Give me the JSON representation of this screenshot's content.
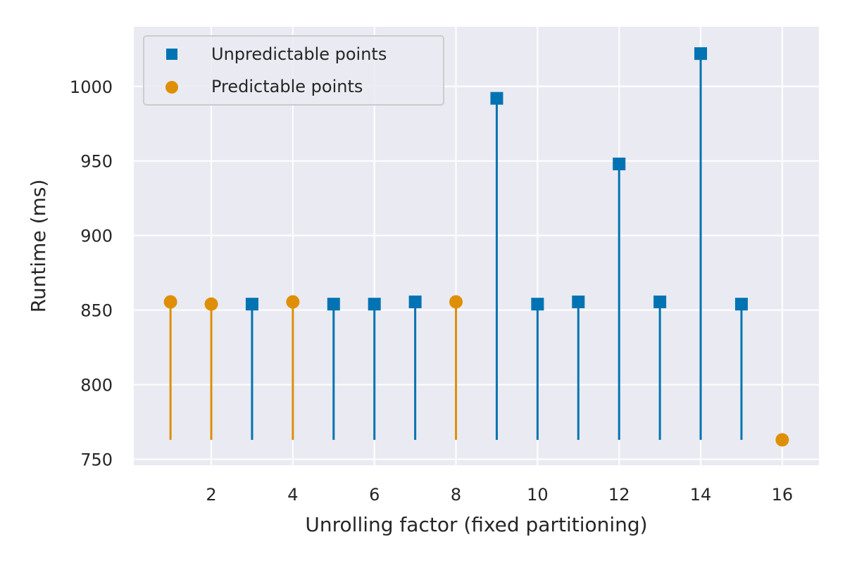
{
  "colors": {
    "background": "#eaeaf2",
    "grid": "#ffffff",
    "unpredictable": "#0173b2",
    "predictable": "#de8f05"
  },
  "chart_data": {
    "type": "scatter",
    "style": "stem",
    "title": "",
    "xlabel": "Unrolling factor (fixed partitioning)",
    "ylabel": "Runtime (ms)",
    "xlim": [
      0.1,
      16.9
    ],
    "ylim": [
      746,
      1040
    ],
    "stem_baseline": 763,
    "xticks": [
      2,
      4,
      6,
      8,
      10,
      12,
      14,
      16
    ],
    "yticks": [
      750,
      800,
      850,
      900,
      950,
      1000
    ],
    "grid": true,
    "legend": {
      "location": "top-left"
    },
    "series": [
      {
        "name": "Unpredictable points",
        "marker": "square",
        "color": "#0173b2",
        "points": [
          {
            "x": 3,
            "y": 854
          },
          {
            "x": 5,
            "y": 854
          },
          {
            "x": 6,
            "y": 854
          },
          {
            "x": 7,
            "y": 855.5
          },
          {
            "x": 9,
            "y": 992
          },
          {
            "x": 10,
            "y": 854
          },
          {
            "x": 11,
            "y": 855.5
          },
          {
            "x": 12,
            "y": 948
          },
          {
            "x": 13,
            "y": 855.5
          },
          {
            "x": 14,
            "y": 1022
          },
          {
            "x": 15,
            "y": 854
          }
        ]
      },
      {
        "name": "Predictable points",
        "marker": "circle",
        "color": "#de8f05",
        "points": [
          {
            "x": 1,
            "y": 855.5
          },
          {
            "x": 2,
            "y": 854
          },
          {
            "x": 4,
            "y": 855.5
          },
          {
            "x": 8,
            "y": 855.5
          },
          {
            "x": 16,
            "y": 763
          }
        ]
      }
    ]
  }
}
